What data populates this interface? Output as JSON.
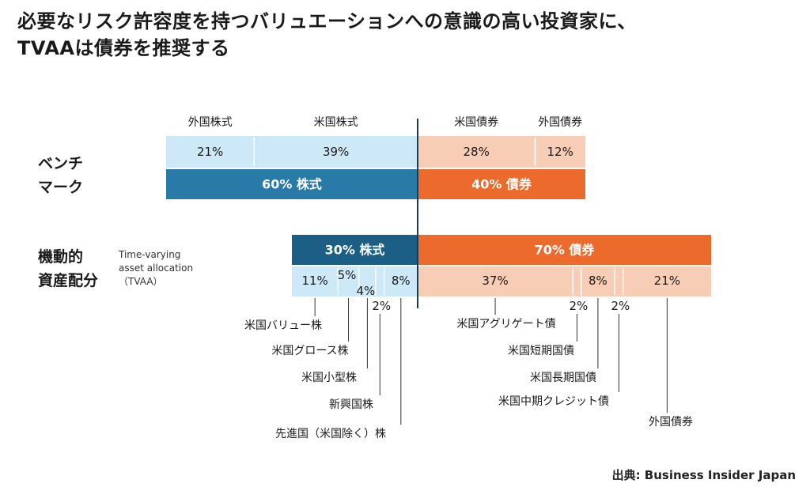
{
  "title": {
    "line1": "必要なリスク許容度を持つバリュエーションへの意識の高い投資家に、",
    "line2": "TVAAは債券を推奨する"
  },
  "source": "出典: Business Insider Japan",
  "colors": {
    "equity_dark": "#1b5f86",
    "equity_mid": "#2a7aa8",
    "equity_light": "#cde8f6",
    "bond_dark": "#ec6a2c",
    "bond_light": "#f8cdb5",
    "axis": "#1f3a4d"
  },
  "chart_data": {
    "type": "bar",
    "subtype": "stacked-horizontal",
    "split_at": "equity|bonds",
    "rows": [
      {
        "id": "benchmark",
        "label_lines": [
          "ベンチ",
          "マーク"
        ],
        "sublabel_lines": [],
        "detail_on_top": true,
        "summary": [
          {
            "group": "equity",
            "value": 60,
            "label": "60% 株式"
          },
          {
            "group": "bond",
            "value": 40,
            "label": "40% 債券"
          }
        ],
        "segments": [
          {
            "group": "equity",
            "name": "外国株式",
            "value": 21,
            "label": "21%"
          },
          {
            "group": "equity",
            "name": "米国株式",
            "value": 39,
            "label": "39%"
          },
          {
            "group": "bond",
            "name": "米国債券",
            "value": 28,
            "label": "28%"
          },
          {
            "group": "bond",
            "name": "外国債券",
            "value": 12,
            "label": "12%"
          }
        ]
      },
      {
        "id": "tvaa",
        "label_lines": [
          "機動的",
          "資産配分"
        ],
        "sublabel_lines": [
          "Time-varying",
          "asset allocation",
          "（TVAA）"
        ],
        "detail_on_top": false,
        "summary": [
          {
            "group": "equity",
            "value": 30,
            "label": "30% 株式"
          },
          {
            "group": "bond",
            "value": 70,
            "label": "70% 債券"
          }
        ],
        "segments": [
          {
            "group": "equity",
            "name": "米国バリュー株",
            "value": 11,
            "label": "11%"
          },
          {
            "group": "equity",
            "name": "米国グロース株",
            "value": 5,
            "label": "5%"
          },
          {
            "group": "equity",
            "name": "米国小型株",
            "value": 4,
            "label": "4%"
          },
          {
            "group": "equity",
            "name": "新興国株",
            "value": 2,
            "label": "2%"
          },
          {
            "group": "equity",
            "name": "先進国（米国除く）株",
            "value": 8,
            "label": "8%"
          },
          {
            "group": "bond",
            "name": "米国アグリゲート債",
            "value": 37,
            "label": "37%"
          },
          {
            "group": "bond",
            "name": "米国短期国債",
            "value": 2,
            "label": "2%"
          },
          {
            "group": "bond",
            "name": "米国長期国債",
            "value": 8,
            "label": "8%"
          },
          {
            "group": "bond",
            "name": "米国中期クレジット債",
            "value": 2,
            "label": "2%"
          },
          {
            "group": "bond",
            "name": "外国債券",
            "value": 21,
            "label": "21%"
          }
        ]
      }
    ]
  }
}
